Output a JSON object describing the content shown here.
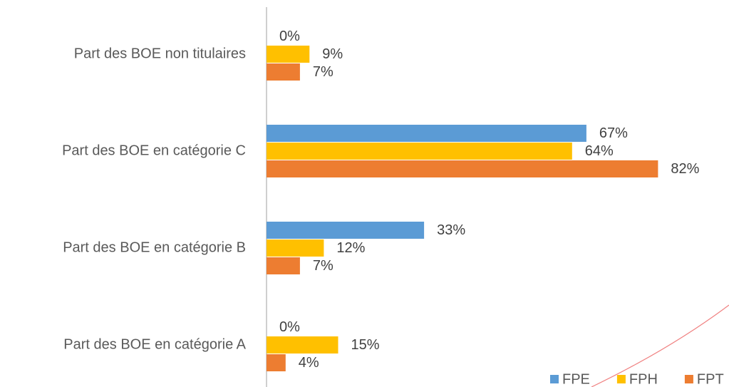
{
  "chart_data": {
    "type": "hbar",
    "categories": [
      "Part des BOE non titulaires",
      "Part des BOE en catégorie C",
      "Part des BOE en catégorie B",
      "Part des BOE en catégorie A"
    ],
    "series": [
      {
        "name": "FPE",
        "color": "#5b9bd5",
        "values": [
          0,
          67,
          33,
          0
        ],
        "value_labels": [
          "0%",
          "67%",
          "33%",
          "0%"
        ]
      },
      {
        "name": "FPH",
        "color": "#ffc000",
        "values": [
          9,
          64,
          12,
          15
        ],
        "value_labels": [
          "9%",
          "64%",
          "12%",
          "15%"
        ]
      },
      {
        "name": "FPT",
        "color": "#ed7d31",
        "values": [
          7,
          82,
          7,
          4
        ],
        "value_labels": [
          "7%",
          "82%",
          "7%",
          "4%"
        ]
      }
    ],
    "xlim": [
      0,
      90
    ],
    "legend": "bottom-right"
  }
}
